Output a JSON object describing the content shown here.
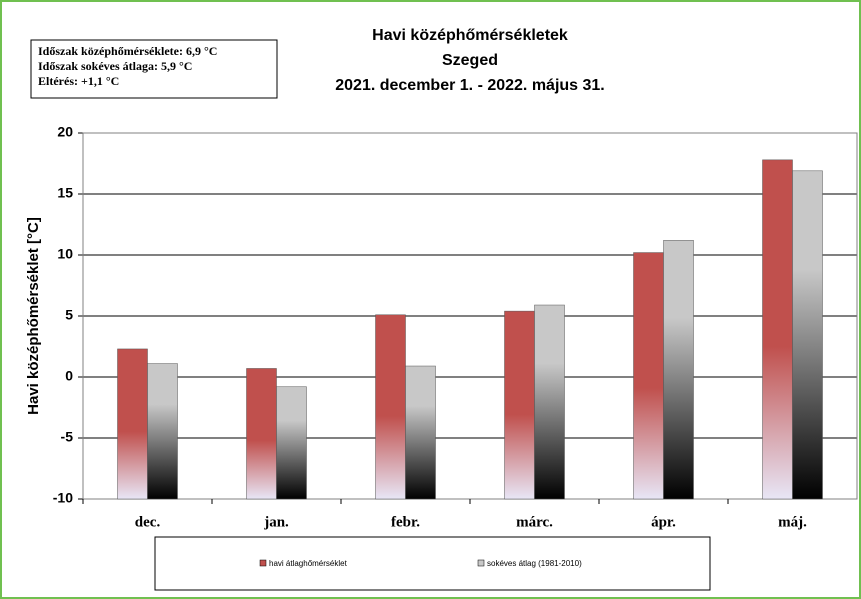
{
  "chart_data": {
    "type": "bar",
    "title": [
      "Havi középhőmérsékletek",
      "Szeged",
      "2021. december 1. - 2022. május 31."
    ],
    "annotations": [
      "Időszak középhőmérséklete: 6,9 °C",
      "Időszak sokéves átlaga: 5,9 °C",
      "Eltérés: +1,1 °C"
    ],
    "y_label": "Havi középhőmérséklet  [°C]",
    "categories": [
      "dec.",
      "jan.",
      "febr.",
      "márc.",
      "ápr.",
      "máj."
    ],
    "series": [
      {
        "name": "havi átlaghőmérséklet",
        "color": "#c0504d",
        "values": [
          2.3,
          0.7,
          5.1,
          5.4,
          10.2,
          17.8
        ]
      },
      {
        "name": "sokéves átlag (1981-2010)",
        "color": "#c8c8c8",
        "values": [
          1.1,
          -0.8,
          0.9,
          5.9,
          11.2,
          16.9
        ]
      }
    ],
    "ylim": [
      -10,
      20
    ],
    "yticks": [
      -10,
      -5,
      0,
      5,
      10,
      15,
      20
    ],
    "grid": true
  }
}
